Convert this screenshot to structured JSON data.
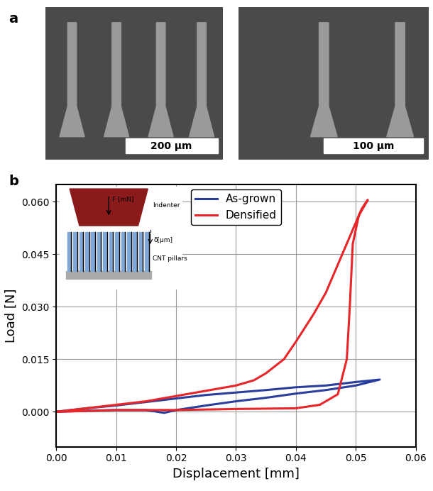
{
  "panel_labels": [
    "a",
    "b"
  ],
  "images": [
    {
      "scale_bar": "200 µm"
    },
    {
      "scale_bar": "100 µm"
    }
  ],
  "inset": {
    "indenter": "Indenter",
    "force": "F [mN]",
    "displacement": "δ[μm]",
    "pillars": "CNT pillars"
  },
  "chart_data": {
    "type": "line",
    "x_label": "Displacement [mm]",
    "y_label": "Load [N]",
    "xlim": [
      0,
      0.06
    ],
    "ylim": [
      -0.01,
      0.065
    ],
    "xticks": [
      {
        "value": 0,
        "label": "0.00"
      },
      {
        "value": 0.01,
        "label": "0.01"
      },
      {
        "value": 0.02,
        "label": "0.02"
      },
      {
        "value": 0.03,
        "label": "0.03"
      },
      {
        "value": 0.04,
        "label": "0.04"
      },
      {
        "value": 0.05,
        "label": "0.05"
      },
      {
        "value": 0.06,
        "label": "0.06"
      }
    ],
    "yticks": [
      {
        "value": 0,
        "label": "0.000"
      },
      {
        "value": 0.015,
        "label": "0.015"
      },
      {
        "value": 0.03,
        "label": "0.030"
      },
      {
        "value": 0.045,
        "label": "0.045"
      },
      {
        "value": 0.06,
        "label": "0.060"
      }
    ],
    "grid": true,
    "legend": "upper center",
    "series": [
      {
        "name": "As-grown",
        "color": "#2a3f9d",
        "x": [
          0,
          0.005,
          0.01,
          0.015,
          0.02,
          0.025,
          0.03,
          0.035,
          0.04,
          0.045,
          0.05,
          0.054,
          0.05,
          0.045,
          0.04,
          0.035,
          0.03,
          0.025,
          0.02,
          0.018,
          0.015,
          0.01,
          0.005,
          0
        ],
        "values": [
          0,
          0.001,
          0.0018,
          0.0028,
          0.0038,
          0.0048,
          0.0055,
          0.0062,
          0.007,
          0.0075,
          0.0085,
          0.0092,
          0.0075,
          0.0062,
          0.0052,
          0.004,
          0.003,
          0.0018,
          0.0005,
          -0.0003,
          0.0005,
          0.0005,
          0.0003,
          0
        ]
      },
      {
        "name": "Densified",
        "color": "#e8262a",
        "x": [
          0,
          0.005,
          0.01,
          0.015,
          0.02,
          0.025,
          0.03,
          0.033,
          0.035,
          0.038,
          0.04,
          0.043,
          0.045,
          0.047,
          0.049,
          0.051,
          0.052,
          0.0505,
          0.0495,
          0.049,
          0.0485,
          0.047,
          0.044,
          0.04,
          0.03,
          0.02,
          0.01,
          0
        ],
        "values": [
          0,
          0.001,
          0.002,
          0.003,
          0.0045,
          0.006,
          0.0075,
          0.009,
          0.011,
          0.015,
          0.02,
          0.028,
          0.034,
          0.042,
          0.05,
          0.058,
          0.0605,
          0.056,
          0.048,
          0.03,
          0.015,
          0.005,
          0.002,
          0.001,
          0.0008,
          0.0005,
          0.0005,
          0
        ]
      }
    ]
  }
}
